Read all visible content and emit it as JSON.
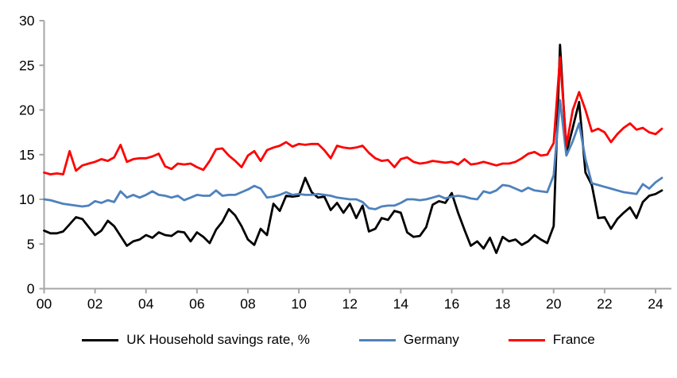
{
  "chart_data": {
    "type": "line",
    "title": "",
    "xlabel": "",
    "ylabel": "",
    "grid": false,
    "legend_position": "bottom",
    "x_start_year": 2000,
    "x_step_years": 0.25,
    "x_axis": {
      "tick_labels": [
        "00",
        "02",
        "04",
        "06",
        "08",
        "10",
        "12",
        "14",
        "16",
        "18",
        "20",
        "22",
        "24"
      ],
      "tick_step_years": 2,
      "range_years": [
        2000,
        2024.7
      ]
    },
    "y_axis": {
      "min": 0,
      "max": 30,
      "tick_step": 5,
      "tick_labels": [
        "0",
        "5",
        "10",
        "15",
        "20",
        "25",
        "30"
      ]
    },
    "colors": {
      "axis": "#A6A6A6",
      "text": "#000000"
    },
    "series": [
      {
        "name": "UK Household savings rate, %",
        "color": "#000000",
        "values": [
          6.5,
          6.2,
          6.2,
          6.4,
          7.2,
          8.0,
          7.8,
          6.9,
          6.0,
          6.5,
          7.6,
          7.0,
          5.9,
          4.8,
          5.3,
          5.5,
          6.0,
          5.7,
          6.3,
          6.0,
          5.9,
          6.4,
          6.3,
          5.3,
          6.3,
          5.8,
          5.1,
          6.6,
          7.5,
          8.9,
          8.2,
          7.0,
          5.5,
          4.9,
          6.7,
          6.0,
          9.5,
          8.7,
          10.4,
          10.3,
          10.4,
          12.4,
          10.8,
          10.2,
          10.3,
          8.8,
          9.6,
          8.5,
          9.5,
          7.9,
          9.3,
          6.4,
          6.7,
          7.9,
          7.7,
          8.7,
          8.5,
          6.3,
          5.8,
          5.9,
          6.9,
          9.4,
          9.8,
          9.6,
          10.7,
          8.5,
          6.6,
          4.8,
          5.3,
          4.5,
          5.7,
          4.0,
          5.8,
          5.3,
          5.5,
          4.9,
          5.3,
          6.0,
          5.5,
          5.1,
          7.0,
          27.3,
          15.2,
          18.0,
          20.9,
          13.0,
          11.6,
          7.9,
          8.0,
          6.7,
          7.8,
          8.5,
          9.1,
          7.9,
          9.7,
          10.4,
          10.6,
          11.0
        ]
      },
      {
        "name": "Germany",
        "color": "#4E81BD",
        "values": [
          10.0,
          9.9,
          9.7,
          9.5,
          9.4,
          9.3,
          9.2,
          9.3,
          9.8,
          9.6,
          9.9,
          9.7,
          10.9,
          10.2,
          10.5,
          10.2,
          10.5,
          10.9,
          10.5,
          10.4,
          10.2,
          10.4,
          9.9,
          10.2,
          10.5,
          10.4,
          10.4,
          11.0,
          10.4,
          10.5,
          10.5,
          10.8,
          11.1,
          11.5,
          11.2,
          10.2,
          10.3,
          10.5,
          10.8,
          10.5,
          10.6,
          10.5,
          10.5,
          10.6,
          10.5,
          10.4,
          10.2,
          10.1,
          10.0,
          10.0,
          9.7,
          9.0,
          8.9,
          9.2,
          9.3,
          9.3,
          9.6,
          10.0,
          10.0,
          9.9,
          10.0,
          10.2,
          10.4,
          10.1,
          10.3,
          10.4,
          10.3,
          10.1,
          10.0,
          10.9,
          10.7,
          11.0,
          11.6,
          11.5,
          11.2,
          10.9,
          11.3,
          11.0,
          10.9,
          10.8,
          12.7,
          21.1,
          14.9,
          16.5,
          18.5,
          14.5,
          11.8,
          11.6,
          11.4,
          11.2,
          11.0,
          10.8,
          10.7,
          10.6,
          11.7,
          11.2,
          11.9,
          12.4
        ]
      },
      {
        "name": "France",
        "color": "#FF0000",
        "values": [
          13.0,
          12.8,
          12.9,
          12.8,
          15.4,
          13.2,
          13.8,
          14.0,
          14.2,
          14.5,
          14.3,
          14.7,
          16.1,
          14.2,
          14.5,
          14.6,
          14.6,
          14.8,
          15.1,
          13.7,
          13.4,
          14.0,
          13.9,
          14.0,
          13.6,
          13.3,
          14.3,
          15.6,
          15.7,
          14.9,
          14.3,
          13.6,
          14.9,
          15.4,
          14.3,
          15.5,
          15.8,
          16.0,
          16.4,
          15.9,
          16.2,
          16.1,
          16.2,
          16.2,
          15.5,
          14.6,
          16.0,
          15.8,
          15.7,
          15.8,
          16.0,
          15.2,
          14.6,
          14.3,
          14.4,
          13.6,
          14.5,
          14.7,
          14.2,
          14.0,
          14.1,
          14.3,
          14.2,
          14.1,
          14.2,
          13.9,
          14.5,
          13.9,
          14.0,
          14.2,
          14.0,
          13.8,
          14.0,
          14.0,
          14.2,
          14.6,
          15.1,
          15.3,
          14.9,
          15.0,
          16.3,
          25.9,
          16.0,
          20.0,
          22.0,
          20.0,
          17.6,
          17.9,
          17.5,
          16.4,
          17.3,
          18.0,
          18.5,
          17.8,
          18.0,
          17.5,
          17.3,
          17.9
        ]
      }
    ]
  }
}
